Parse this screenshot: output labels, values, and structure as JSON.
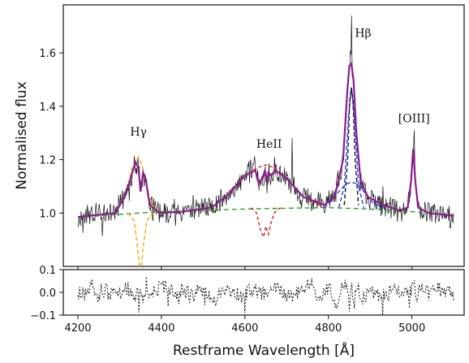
{
  "chart_data": [
    {
      "type": "line",
      "panel": "spectrum",
      "ylabel": "Normalised flux",
      "xlim": [
        4165,
        5125
      ],
      "ylim": [
        0.8,
        1.78
      ],
      "xticks": [
        4200,
        4400,
        4600,
        4800,
        5000
      ],
      "yticks": [
        1.0,
        1.2,
        1.4,
        1.6
      ],
      "ytick_labels": [
        "1.0",
        "1.2",
        "1.4",
        "1.6"
      ],
      "grid": false,
      "annotations": [
        {
          "label": "Hγ",
          "x": 4345,
          "y": 1.29
        },
        {
          "label": "HeII",
          "x": 4658,
          "y": 1.245
        },
        {
          "label": "Hβ",
          "x": 4883,
          "y": 1.66
        },
        {
          "label": "[OIII]",
          "x": 5005,
          "y": 1.34
        }
      ],
      "series": [
        {
          "name": "continuum",
          "color": "#2ca02c",
          "dash": "6 4",
          "x": [
            4200,
            4300,
            4400,
            4500,
            4600,
            4700,
            4800,
            4900,
            5000,
            5100
          ],
          "y": [
            0.985,
            0.995,
            1.005,
            1.01,
            1.015,
            1.018,
            1.02,
            1.015,
            1.005,
            0.99
          ]
        },
        {
          "name": "Hgamma absorption",
          "color": "#ffa500",
          "dash": "5 3",
          "x": [
            4320,
            4335,
            4342,
            4350,
            4356,
            4365,
            4380
          ],
          "y": [
            1.0,
            0.97,
            0.88,
            0.76,
            0.87,
            0.97,
            1.0
          ]
        },
        {
          "name": "Hgamma broad",
          "color": "#ffa500",
          "dash": "5 3",
          "x": [
            4290,
            4315,
            4330,
            4345,
            4355,
            4370,
            4390
          ],
          "y": [
            1.0,
            1.07,
            1.17,
            1.21,
            1.17,
            1.06,
            1.0
          ]
        },
        {
          "name": "HeII absorption",
          "color": "#e41a1c",
          "dash": "4 3",
          "x": [
            4615,
            4628,
            4638,
            4645,
            4650,
            4656,
            4662,
            4670,
            4685
          ],
          "y": [
            1.02,
            1.0,
            0.93,
            0.91,
            0.95,
            0.92,
            0.96,
            1.0,
            1.02
          ]
        },
        {
          "name": "HeII broad",
          "color": "#e41a1c",
          "dash": "4 3",
          "x": [
            4520,
            4560,
            4600,
            4630,
            4650,
            4670,
            4700,
            4740,
            4790
          ],
          "y": [
            1.02,
            1.07,
            1.14,
            1.17,
            1.18,
            1.17,
            1.13,
            1.06,
            1.02
          ]
        },
        {
          "name": "Hbeta broad",
          "color": "#1f3fff",
          "dash": "5 3",
          "x": [
            4790,
            4810,
            4830,
            4845,
            4855,
            4868,
            4885,
            4905,
            4930
          ],
          "y": [
            1.02,
            1.05,
            1.09,
            1.11,
            1.115,
            1.11,
            1.08,
            1.04,
            1.02
          ]
        },
        {
          "name": "Hbeta narrow",
          "color": "#1f3fff",
          "dash": "5 3",
          "x": [
            4825,
            4838,
            4848,
            4855,
            4862,
            4872,
            4885
          ],
          "y": [
            1.02,
            1.1,
            1.36,
            1.47,
            1.36,
            1.1,
            1.02
          ]
        },
        {
          "name": "Hbeta core",
          "color": "#111111",
          "dash": "5 3",
          "x": [
            4838,
            4846,
            4851,
            4855,
            4859,
            4864,
            4872
          ],
          "y": [
            1.03,
            1.2,
            1.42,
            1.47,
            1.42,
            1.2,
            1.03
          ]
        },
        {
          "name": "total model",
          "color": "#8b1c8b",
          "width": 2.2,
          "x": [
            4200,
            4290,
            4315,
            4330,
            4338,
            4345,
            4350,
            4356,
            4362,
            4372,
            4395,
            4450,
            4520,
            4560,
            4600,
            4625,
            4633,
            4642,
            4648,
            4653,
            4657,
            4663,
            4672,
            4700,
            4740,
            4790,
            4815,
            4835,
            4845,
            4850,
            4855,
            4860,
            4867,
            4877,
            4895,
            4930,
            4970,
            4990,
            4998,
            5003,
            5008,
            5015,
            5040,
            5100
          ],
          "y": [
            0.985,
            1.0,
            1.07,
            1.15,
            1.19,
            1.17,
            1.08,
            1.15,
            1.13,
            1.03,
            1.0,
            1.005,
            1.02,
            1.07,
            1.14,
            1.16,
            1.11,
            1.13,
            1.16,
            1.12,
            1.15,
            1.14,
            1.16,
            1.13,
            1.06,
            1.03,
            1.06,
            1.2,
            1.45,
            1.55,
            1.56,
            1.5,
            1.3,
            1.12,
            1.06,
            1.03,
            1.01,
            1.02,
            1.12,
            1.24,
            1.12,
            1.02,
            1.0,
            0.99
          ]
        }
      ]
    },
    {
      "type": "line",
      "panel": "residuals",
      "xlabel": "Restframe Wavelength [Å]",
      "xlim": [
        4165,
        5125
      ],
      "ylim": [
        -0.1,
        0.1
      ],
      "xticks": [
        4200,
        4400,
        4600,
        4800,
        5000
      ],
      "xtick_labels": [
        "4200",
        "4400",
        "4600",
        "4800",
        "5000"
      ],
      "yticks": [
        -0.1,
        0.0,
        0.1
      ],
      "ytick_labels": [
        "−0.1",
        "0.0",
        "0.1"
      ],
      "grid": false,
      "series": [
        {
          "name": "residuals",
          "color": "#111111",
          "dash": "2 2",
          "x": [
            4200,
            4220,
            4232,
            4240,
            4260,
            4290,
            4320,
            4350,
            4380,
            4410,
            4440,
            4450,
            4470,
            4500,
            4530,
            4560,
            4590,
            4620,
            4650,
            4680,
            4710,
            4740,
            4760,
            4780,
            4800,
            4820,
            4840,
            4850,
            4855,
            4860,
            4870,
            4880,
            4900,
            4930,
            4960,
            4990,
            5005,
            5010,
            5015,
            5040,
            5070,
            5100
          ],
          "y": [
            0.01,
            -0.02,
            0.09,
            -0.05,
            0.02,
            -0.03,
            0.03,
            -0.04,
            0.02,
            0.05,
            -0.05,
            0.04,
            -0.03,
            0.03,
            -0.05,
            0.04,
            -0.03,
            0.02,
            -0.02,
            0.03,
            -0.04,
            0.03,
            0.06,
            -0.05,
            0.04,
            -0.09,
            0.07,
            -0.1,
            0.06,
            -0.1,
            0.05,
            -0.08,
            0.03,
            -0.04,
            0.03,
            -0.03,
            0.09,
            -0.1,
            0.04,
            -0.02,
            0.03,
            -0.01
          ]
        }
      ]
    }
  ]
}
